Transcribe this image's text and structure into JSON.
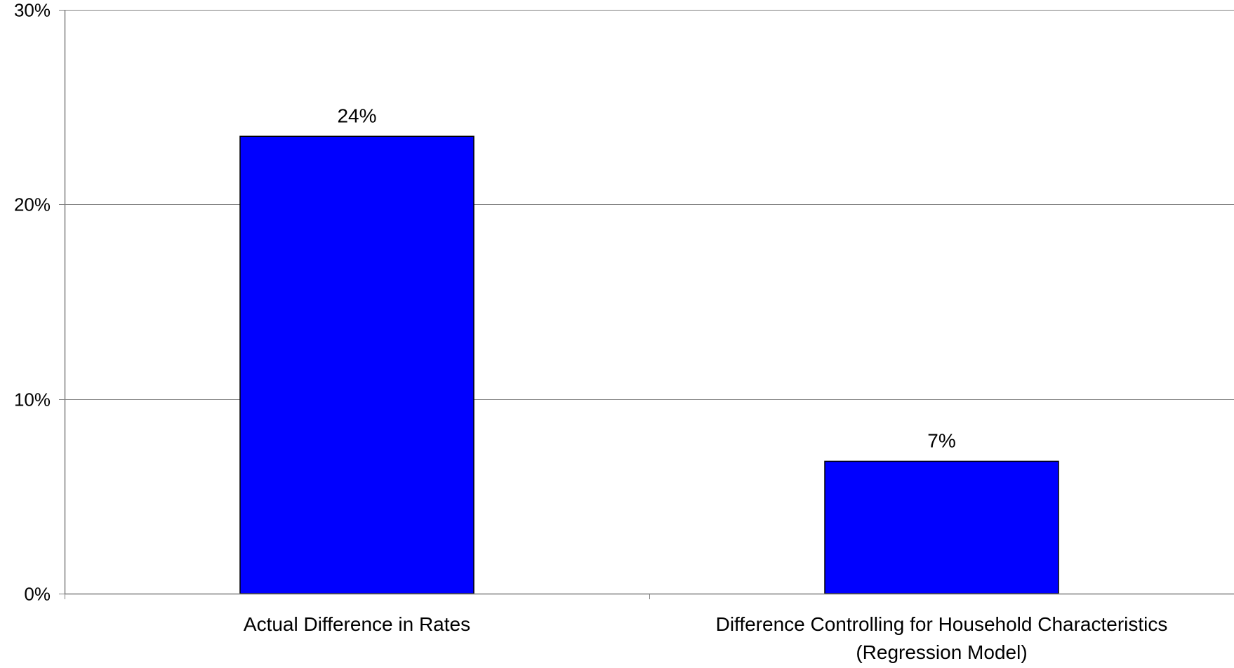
{
  "chart_data": {
    "type": "bar",
    "title": "",
    "xlabel": "",
    "ylabel": "",
    "categories": [
      "Actual Difference in Rates",
      "Difference Controlling for Household Characteristics (Regression Model)"
    ],
    "category_label_lines": [
      [
        "Actual Difference in Rates"
      ],
      [
        "Difference Controlling for Household Characteristics",
        "(Regression Model)"
      ]
    ],
    "values": [
      23.5,
      6.8
    ],
    "data_labels": [
      "24%",
      "7%"
    ],
    "ylim": [
      0,
      30
    ],
    "yticks": [
      0,
      10,
      20,
      30
    ],
    "ytick_labels": [
      "0%",
      "10%",
      "20%",
      "30%"
    ],
    "grid": true,
    "legend": "none",
    "colors": {
      "bar_fill": "#0000ff",
      "bar_stroke": "#000000",
      "grid": "#808080",
      "axis": "#808080",
      "text": "#000000"
    }
  }
}
